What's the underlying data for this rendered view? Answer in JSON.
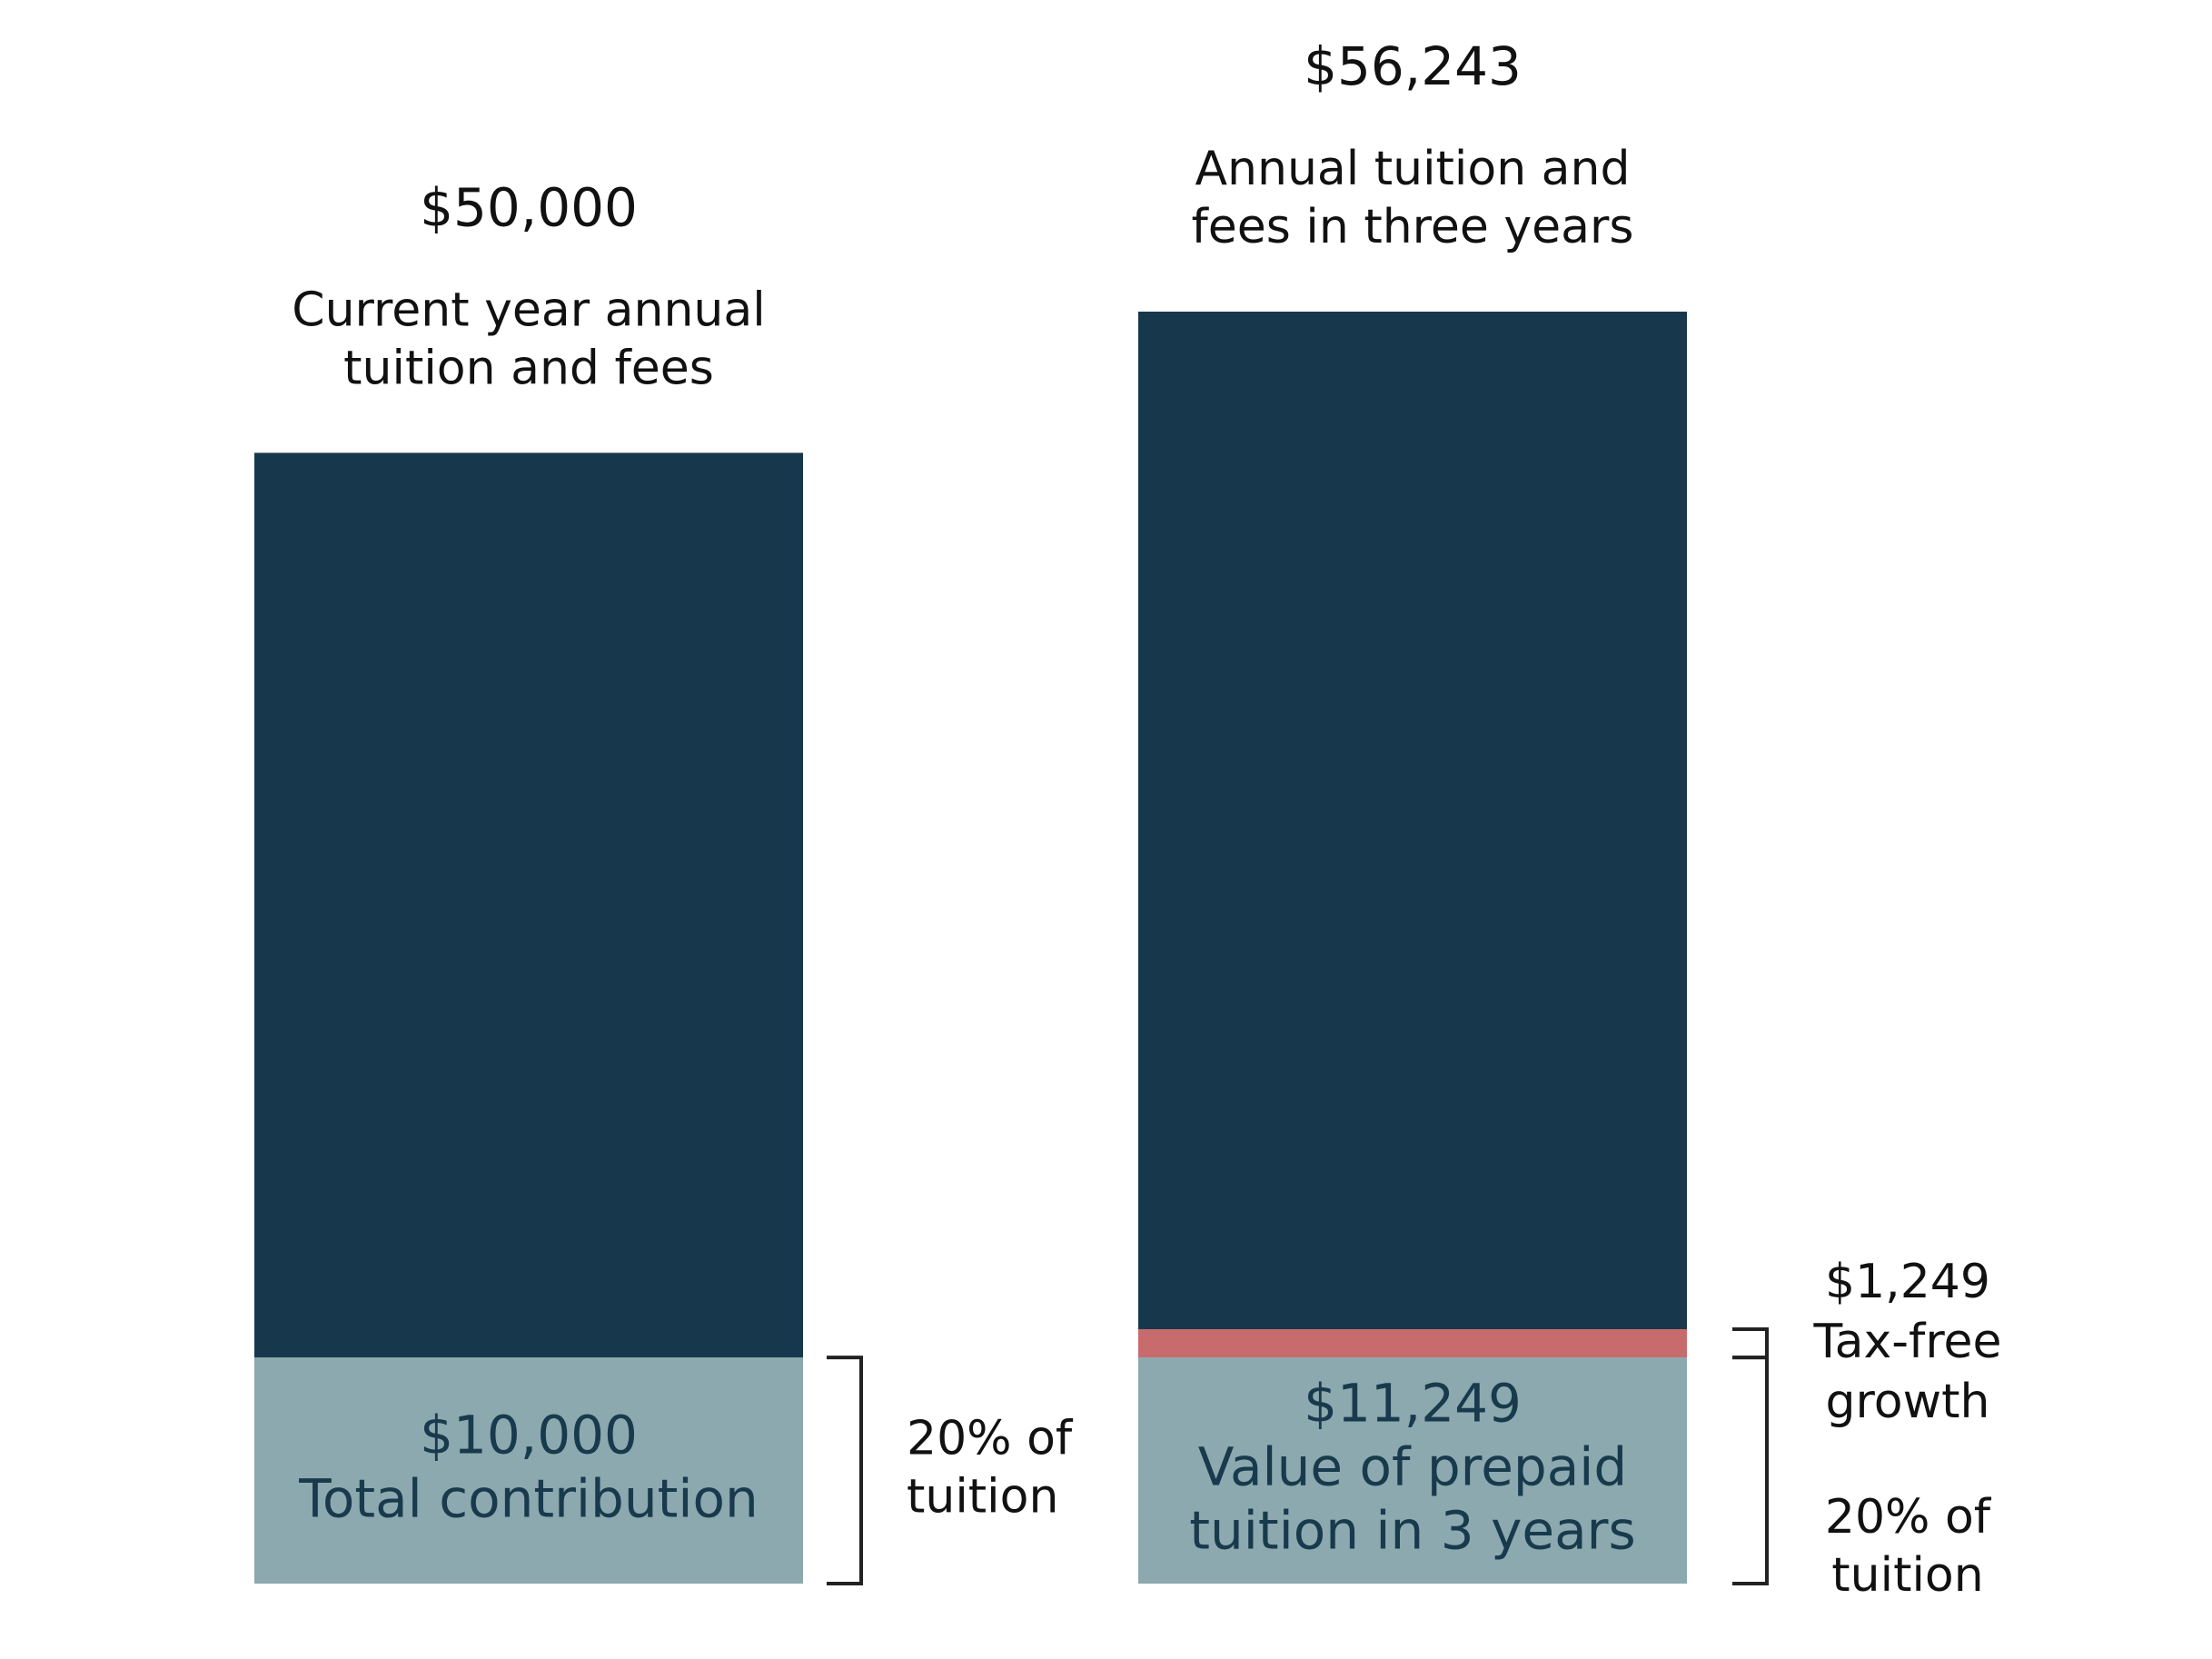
{
  "chart_data": {
    "type": "bar",
    "stacked": true,
    "categories": [
      "current",
      "three_years"
    ],
    "bars": [
      {
        "total_value": 50000,
        "total_label": "$50,000",
        "caption_lines": [
          "Current year annual",
          "tuition and fees"
        ],
        "segments": [
          {
            "key": "contribution",
            "value": 10000,
            "color": "#8ba9af",
            "text_color": "#183a4c",
            "labels": [
              "$10,000",
              "Total contribution"
            ]
          },
          {
            "key": "remaining",
            "value": 40000,
            "color": "#17384c",
            "labels": []
          }
        ],
        "side_annotation": {
          "lines": [
            "20% of",
            "tuition"
          ]
        }
      },
      {
        "total_value": 56243,
        "total_label": "$56,243",
        "caption_lines": [
          "Annual tuition and",
          "fees in three years"
        ],
        "segments": [
          {
            "key": "prepaid_value",
            "value": 10000,
            "color": "#8ba9af",
            "text_color": "#183a4c",
            "labels": [
              "$11,249",
              "Value of prepaid",
              "tuition in 3 years"
            ]
          },
          {
            "key": "tax_free_growth",
            "value": 1249,
            "color": "#c86b6d",
            "labels": []
          },
          {
            "key": "remaining",
            "value": 44994,
            "color": "#17384c",
            "labels": []
          }
        ],
        "growth_annotation": {
          "lines": [
            "$1,249",
            "Tax-free",
            "growth"
          ]
        },
        "side_annotation": {
          "lines": [
            "20% of",
            "tuition"
          ]
        }
      }
    ],
    "ylim": [
      0,
      56243
    ],
    "grid": false,
    "legend": "none"
  }
}
